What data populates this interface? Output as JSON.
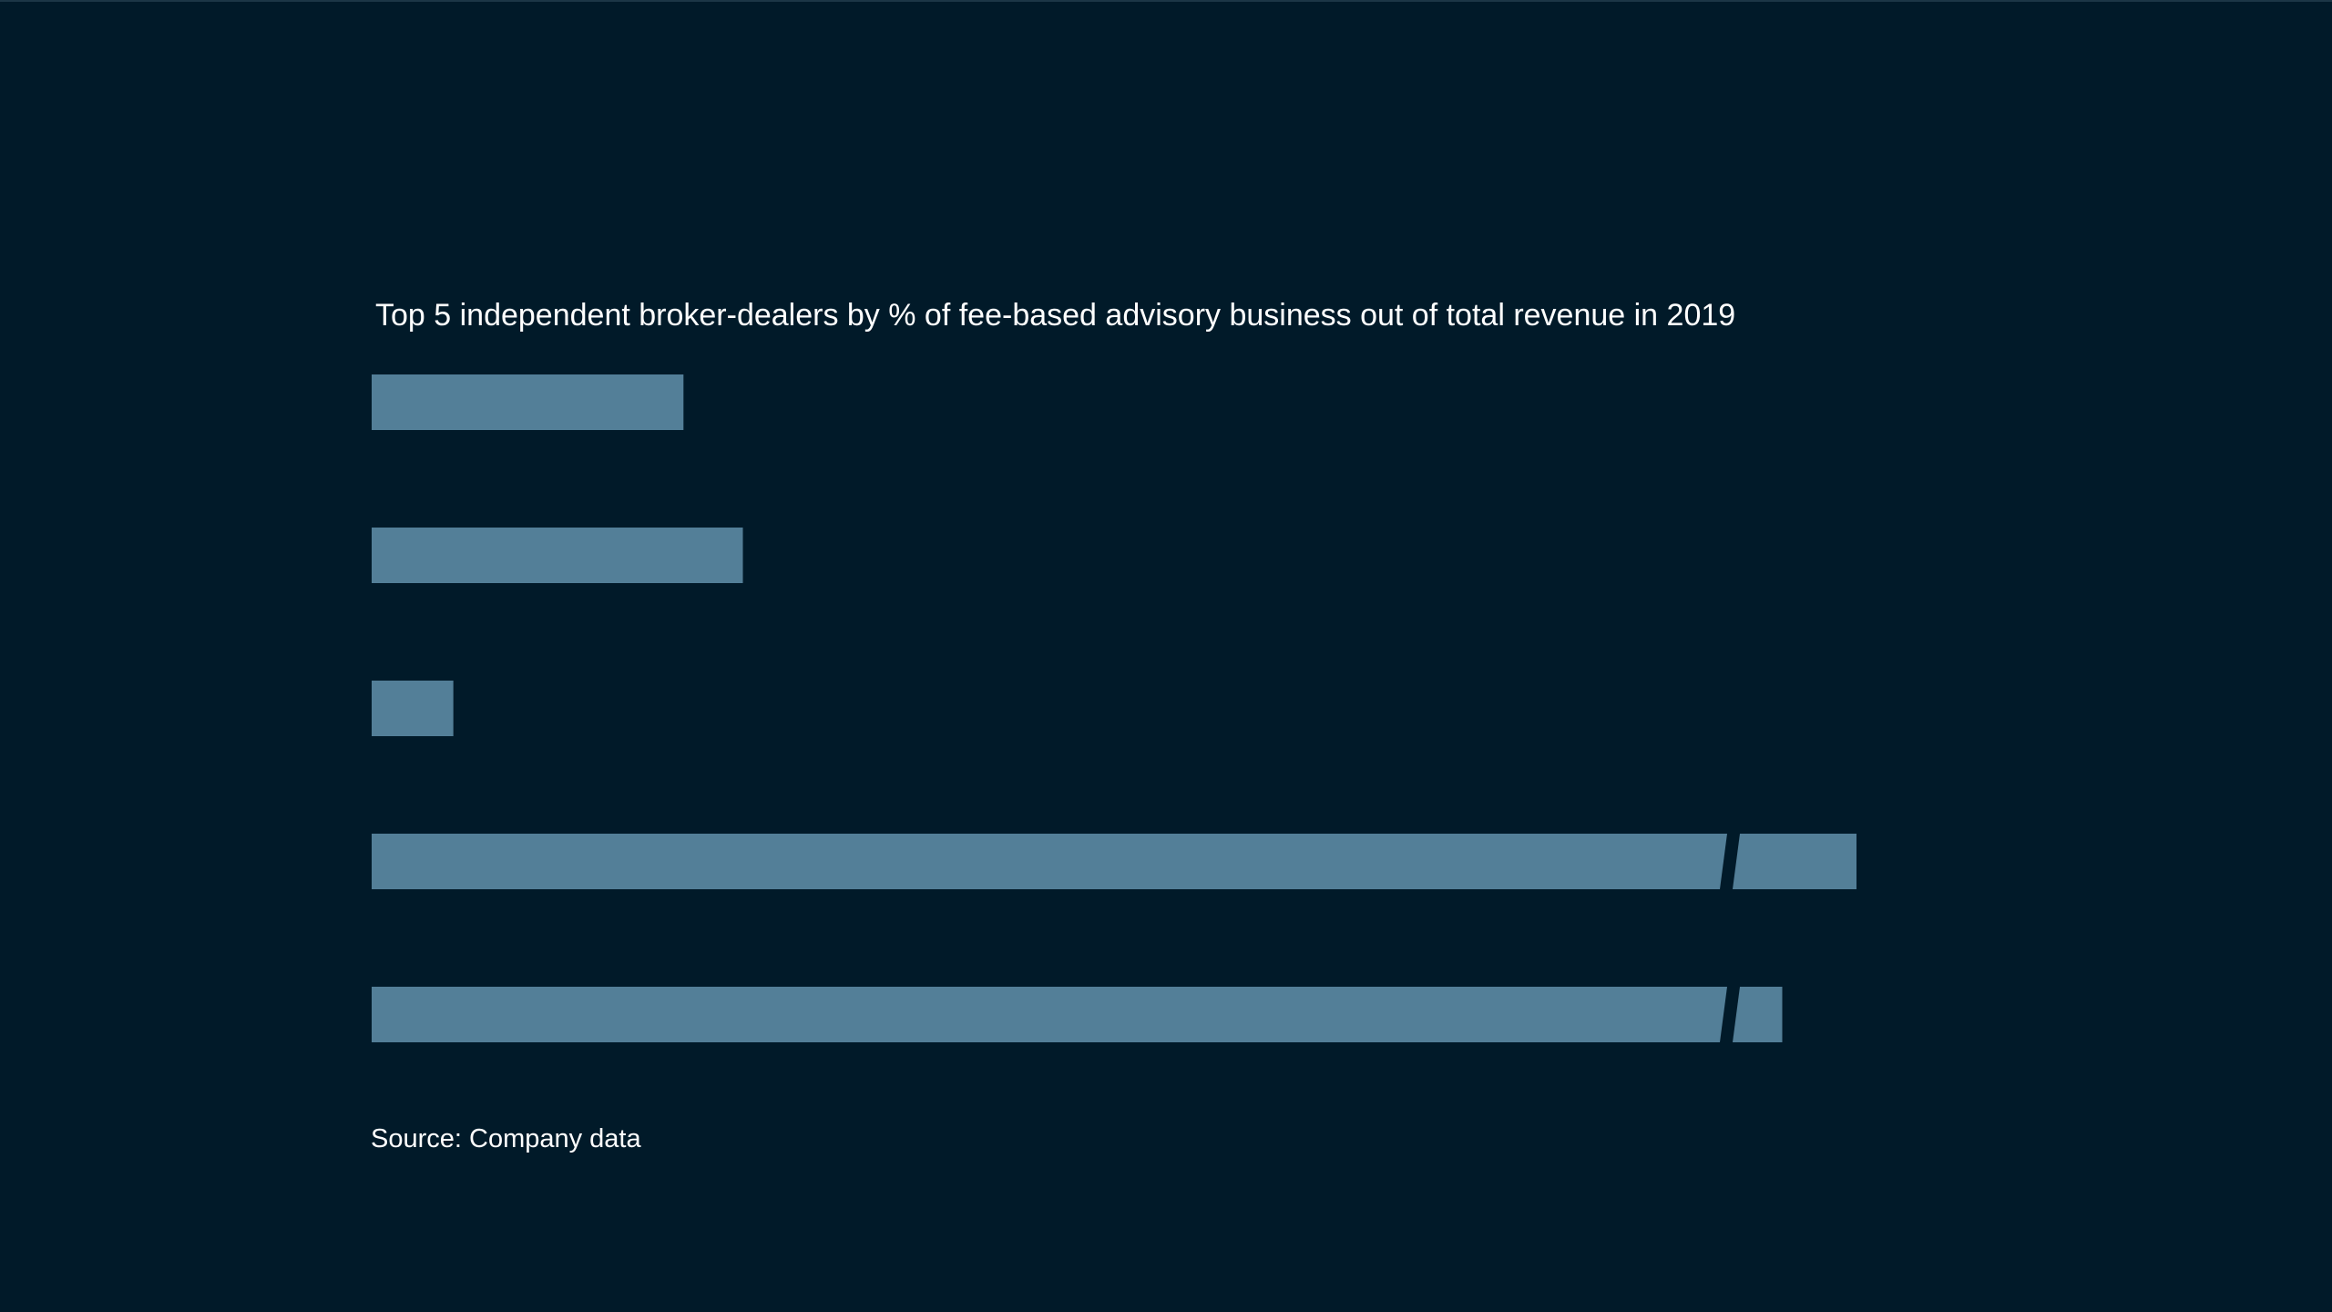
{
  "chart_data": {
    "type": "bar",
    "orientation": "horizontal",
    "title": "Top 5 independent broker-dealers by % of fee-based advisory business out of total revenue in 2019",
    "source": "Source: Company data",
    "categories": [
      "",
      "",
      "",
      "",
      ""
    ],
    "values": [
      21,
      25,
      5.5,
      100,
      95
    ],
    "axis_break_after": 91,
    "bars_with_axis_break": [
      3,
      4
    ],
    "xlim": [
      0,
      100
    ],
    "grid": false,
    "legend": "none",
    "bar_color": "#537f98",
    "background_color": "#011a29",
    "text_color": "#ffffff"
  }
}
